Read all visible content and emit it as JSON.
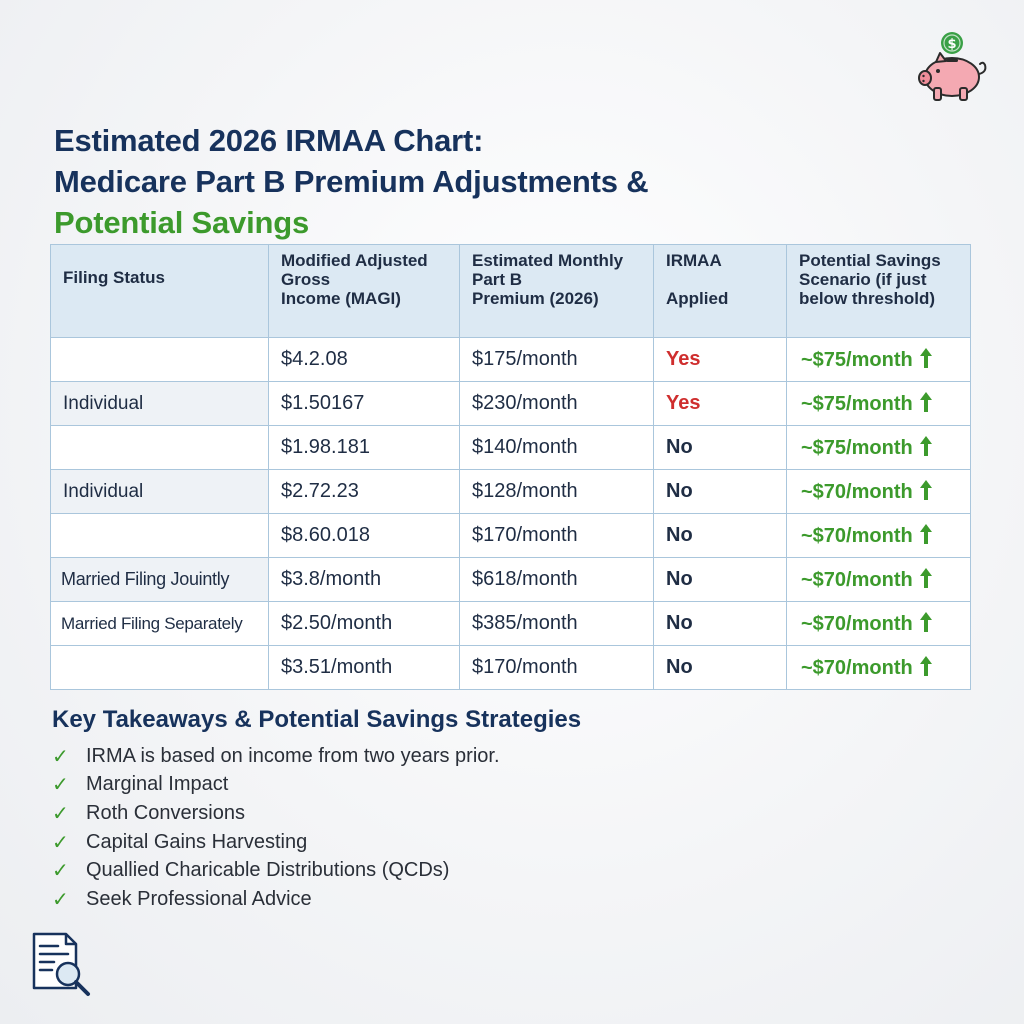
{
  "title": {
    "line1": "Estimated 2026 IRMAA Chart:",
    "line2": "Medicare Part B Premium Adjustments &",
    "line3": "Potential Savings"
  },
  "colors": {
    "navy": "#17325c",
    "green": "#3c9a2c",
    "red": "#cf2e2e",
    "header_bg": "#dce9f3",
    "border": "#aac6dc"
  },
  "icons": {
    "top_right": "piggy-bank-coin-icon",
    "bottom_left": "document-search-icon",
    "savings_arrow": "arrow-up-icon",
    "bullet": "checkmark-icon"
  },
  "table": {
    "headers": {
      "filing_status": "Filing Status",
      "magi": [
        "Modified Adjusted",
        "Gross",
        "Income (MAGI)"
      ],
      "premium": [
        "Estimated Monthly",
        "Part B",
        "Premium (2026)"
      ],
      "irmaa": [
        "IRMAA",
        "",
        "Applied"
      ],
      "savings": [
        "Potential Savings",
        "Scenario (if just",
        "below threshold)"
      ]
    },
    "rows": [
      {
        "status": "",
        "magi": "$4.2.08",
        "premium": "$175/month",
        "irmaa": "Yes",
        "savings": "~$75/month"
      },
      {
        "status": "Individual",
        "magi": "$1.50167",
        "premium": "$230/month",
        "irmaa": "Yes",
        "savings": "~$75/month"
      },
      {
        "status": "",
        "magi": "$1.98.181",
        "premium": "$140/month",
        "irmaa": "No",
        "savings": "~$75/month"
      },
      {
        "status": "Individual",
        "magi": "$2.72.23",
        "premium": "$128/month",
        "irmaa": "No",
        "savings": "~$70/month"
      },
      {
        "status": "",
        "magi": "$8.60.018",
        "premium": "$170/month",
        "irmaa": "No",
        "savings": "~$70/month"
      },
      {
        "status": "Married Filing Jouintly",
        "magi": "$3.8/month",
        "premium": "$618/month",
        "irmaa": "No",
        "savings": "~$70/month"
      },
      {
        "status": "Married Filing Separately",
        "magi": "$2.50/month",
        "premium": "$385/month",
        "irmaa": "No",
        "savings": "~$70/month"
      },
      {
        "status": "",
        "magi": "$3.51/month",
        "premium": "$170/month",
        "irmaa": "No",
        "savings": "~$70/month"
      }
    ]
  },
  "takeaways": {
    "heading": "Key Takeaways & Potential Savings Strategies",
    "check_glyph": "✓",
    "items": [
      "IRMA is based on income from two years prior.",
      "Marginal Impact",
      "Roth Conversions",
      "Capital Gains Harvesting",
      "Quallied Charicable Distributions (QCDs)",
      "Seek Professional Advice"
    ]
  }
}
